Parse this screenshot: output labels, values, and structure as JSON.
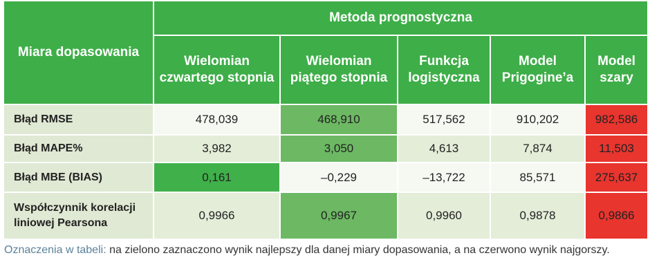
{
  "header": {
    "row_header": "Miara dopasowania",
    "group": "Metoda prognostyczna",
    "columns": [
      "Wielomian czwartego stopnia",
      "Wielomian piątego stopnia",
      "Funkcja logistyczna",
      "Model Prigogine’a",
      "Model szary"
    ]
  },
  "table": {
    "rows": [
      [
        "Błąd RMSE",
        "478,039",
        "468,910",
        "517,562",
        "910,202",
        "982,586"
      ],
      [
        "Błąd MAPE%",
        "3,982",
        "3,050",
        "4,613",
        "7,874",
        "11,503"
      ],
      [
        "Błąd MBE (BIAS)",
        "0,161",
        "–0,229",
        "–13,722",
        "85,571",
        "275,637"
      ],
      [
        "Współczynnik korelacji liniowej Pearsona",
        "0,9966",
        "0,9967",
        "0,9960",
        "0,9878",
        "0,9866"
      ]
    ]
  },
  "caption": {
    "label": "Oznaczenia w tabeli:",
    "text": "na zielono zaznaczono wynik najlepszy dla danej miary dopasowania, a na czerwono wynik najgorszy."
  }
}
